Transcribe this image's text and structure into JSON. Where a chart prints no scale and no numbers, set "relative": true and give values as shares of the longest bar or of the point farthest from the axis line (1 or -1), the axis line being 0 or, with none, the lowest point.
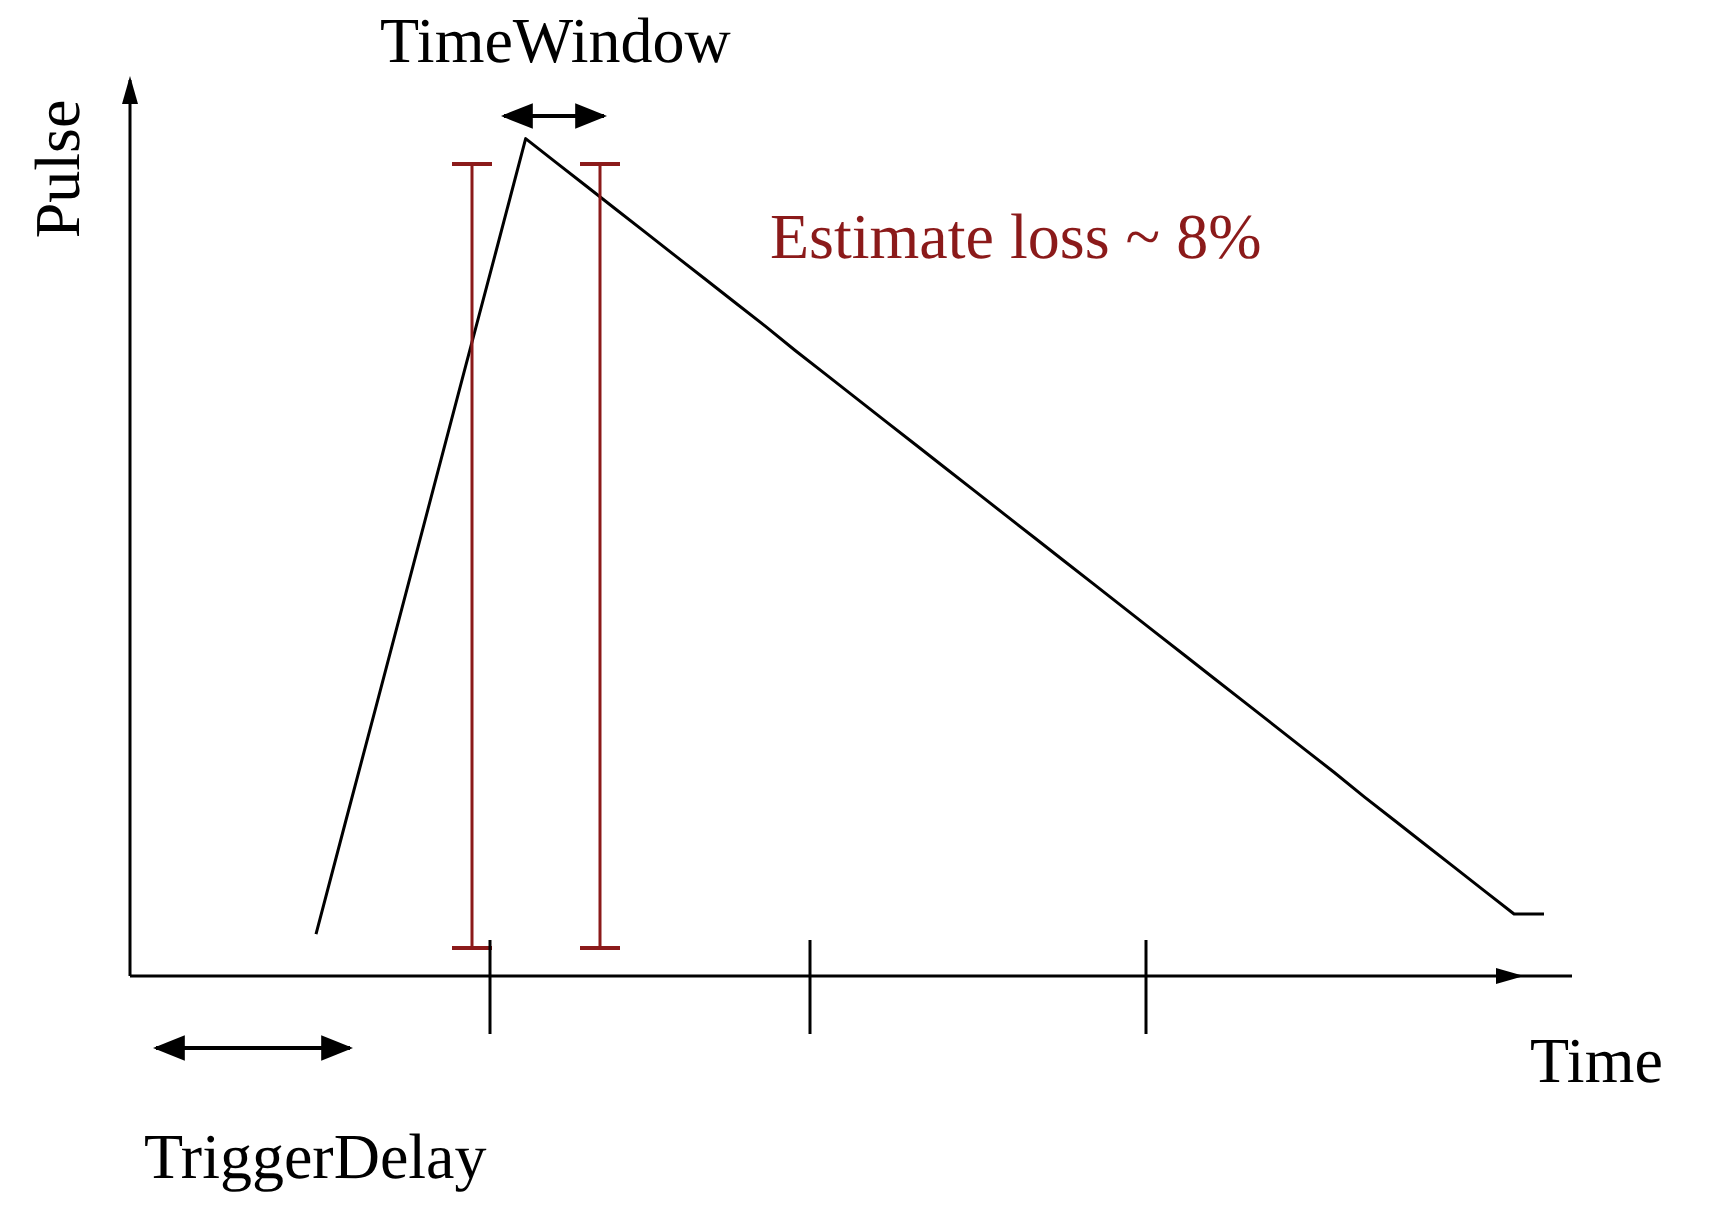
{
  "chart_data": {
    "type": "line",
    "relative": true,
    "xlabel": "Time",
    "ylabel": "Pulse",
    "categories": [
      null,
      null,
      null,
      null,
      null,
      null,
      null,
      null,
      null,
      null,
      null,
      null,
      null,
      null,
      null,
      null,
      null,
      null,
      null,
      null,
      null,
      null,
      null,
      null,
      null,
      null,
      null,
      null,
      null,
      null,
      null,
      null,
      null,
      null,
      null,
      null,
      null,
      null,
      null,
      null,
      null,
      null
    ],
    "series": [
      {
        "color": "#000000",
        "values": [
          0.05,
          0.186,
          0.321,
          0.457,
          0.593,
          0.729,
          0.864,
          1,
          0.972,
          0.944,
          0.916,
          0.888,
          0.86,
          0.832,
          0.804,
          0.776,
          0.747,
          0.719,
          0.691,
          0.663,
          0.635,
          0.607,
          0.579,
          0.551,
          0.523,
          0.495,
          0.467,
          0.439,
          0.411,
          0.383,
          0.355,
          0.327,
          0.299,
          0.271,
          0.243,
          0.214,
          0.186,
          0.158,
          0.13,
          0.102,
          0.074,
          0.074
        ]
      }
    ],
    "annotations": [
      "TimeWindow",
      "TriggerDelay",
      "Estimate loss ~ 8%"
    ],
    "marker": "none",
    "grid": false,
    "legend": false
  }
}
